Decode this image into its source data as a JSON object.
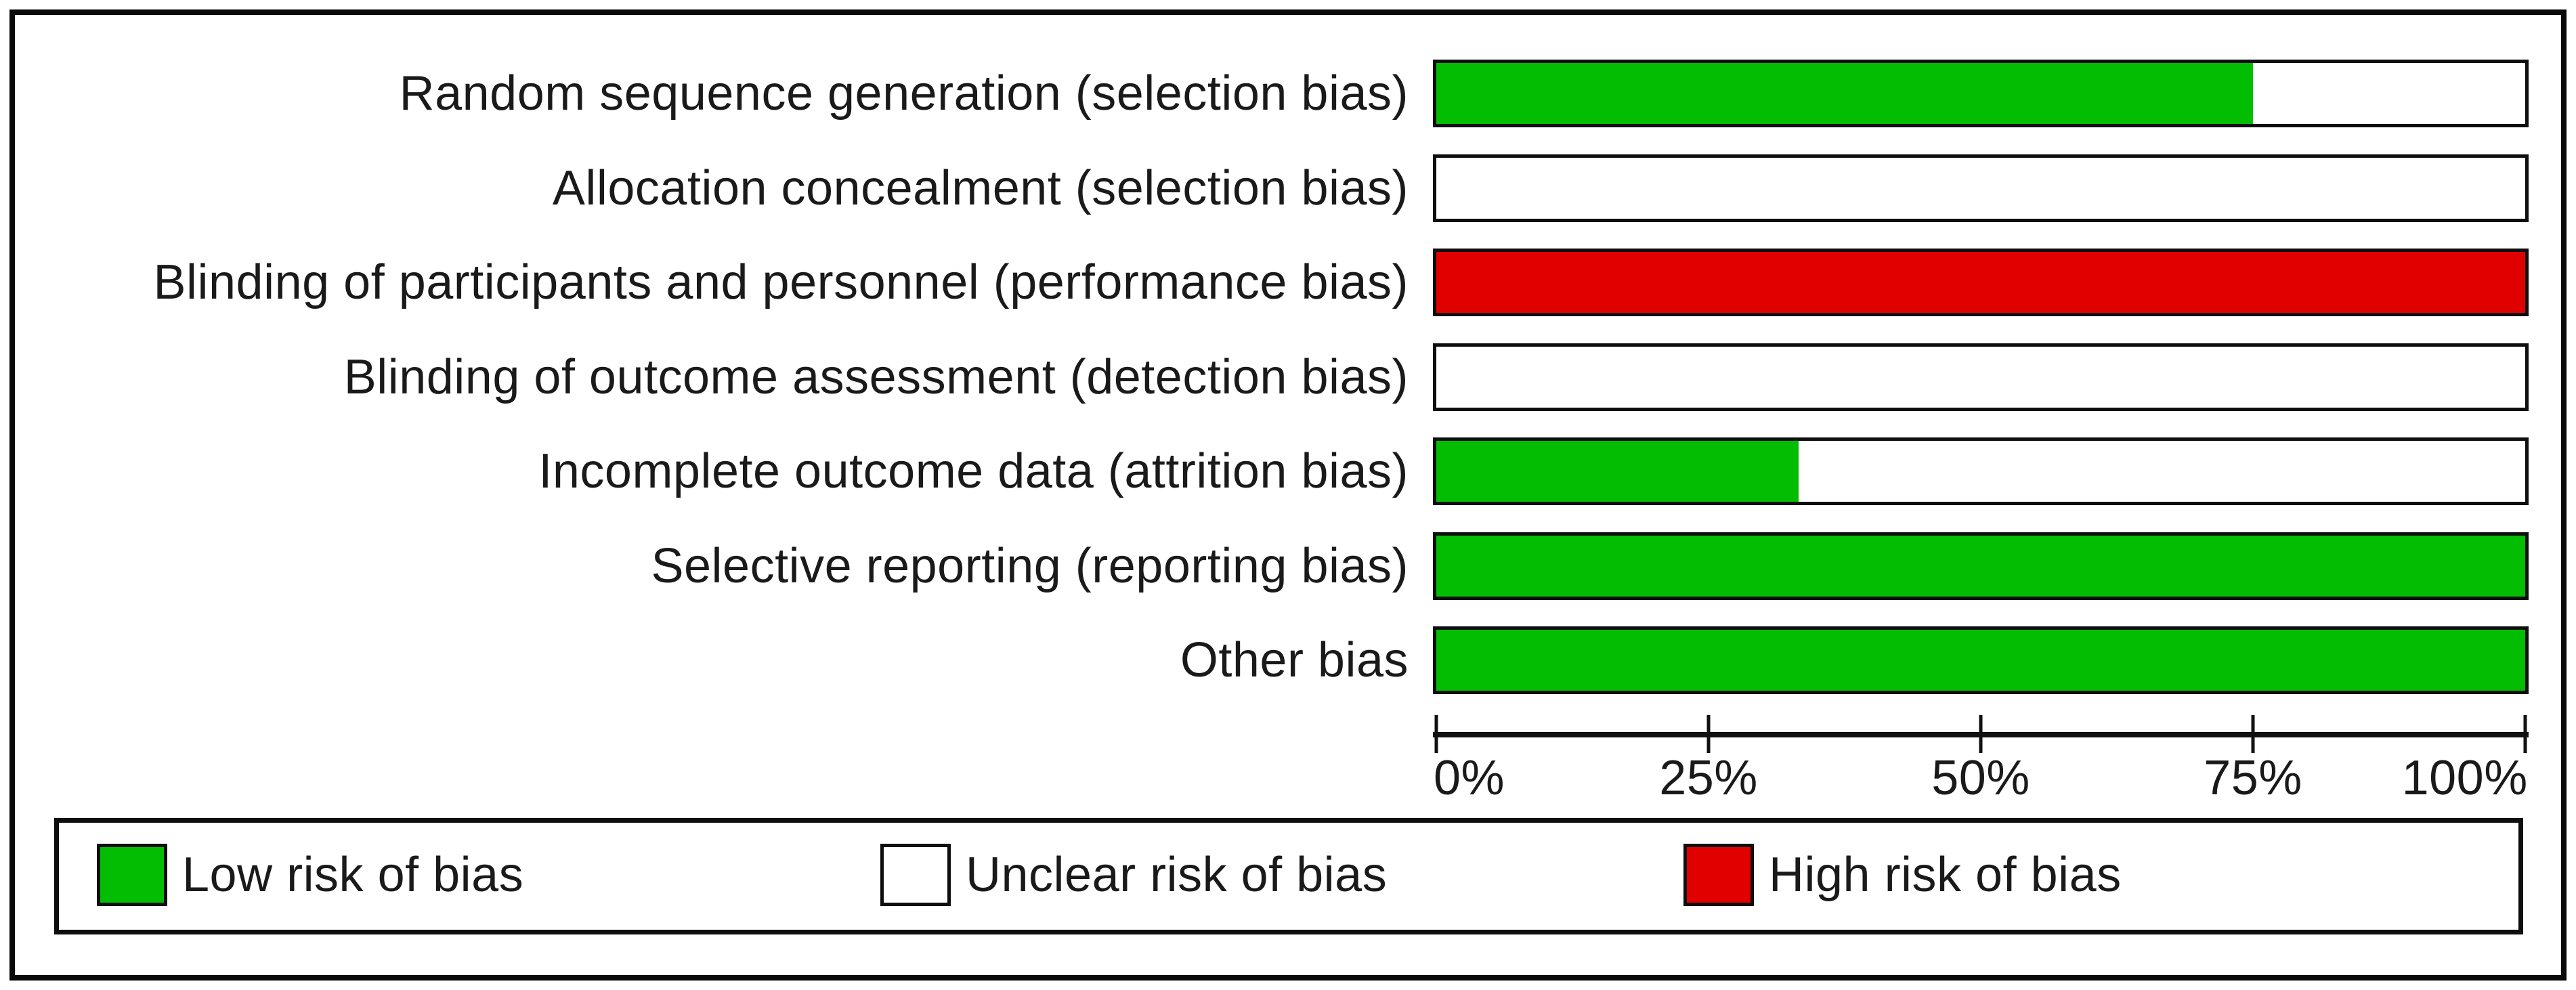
{
  "chart_data": {
    "type": "bar",
    "orientation": "horizontal_stacked",
    "categories": [
      "Random sequence generation (selection bias)",
      "Allocation concealment (selection bias)",
      "Blinding of participants and personnel (performance bias)",
      "Blinding of outcome assessment (detection bias)",
      "Incomplete outcome data (attrition bias)",
      "Selective reporting (reporting bias)",
      "Other bias"
    ],
    "series": [
      {
        "name": "Low risk of bias",
        "color": "#02BD02",
        "values": [
          75,
          0,
          0,
          0,
          33.3,
          100,
          100
        ]
      },
      {
        "name": "Unclear risk of bias",
        "color": "#FFFFFF",
        "values": [
          25,
          100,
          0,
          100,
          66.7,
          0,
          0
        ]
      },
      {
        "name": "High risk of bias",
        "color": "#E00000",
        "values": [
          0,
          0,
          100,
          0,
          0,
          0,
          0
        ]
      }
    ],
    "xlim": [
      0,
      100
    ],
    "x_ticks": [
      0,
      25,
      50,
      75,
      100
    ],
    "x_tick_labels": [
      "0%",
      "25%",
      "50%",
      "75%",
      "100%"
    ],
    "grid": false,
    "legend_position": "bottom"
  },
  "legend": {
    "items": [
      {
        "label": "Low risk of bias",
        "color": "#02BD02"
      },
      {
        "label": "Unclear risk of bias",
        "color": "#FFFFFF"
      },
      {
        "label": "High risk of bias",
        "color": "#E00000"
      }
    ]
  }
}
